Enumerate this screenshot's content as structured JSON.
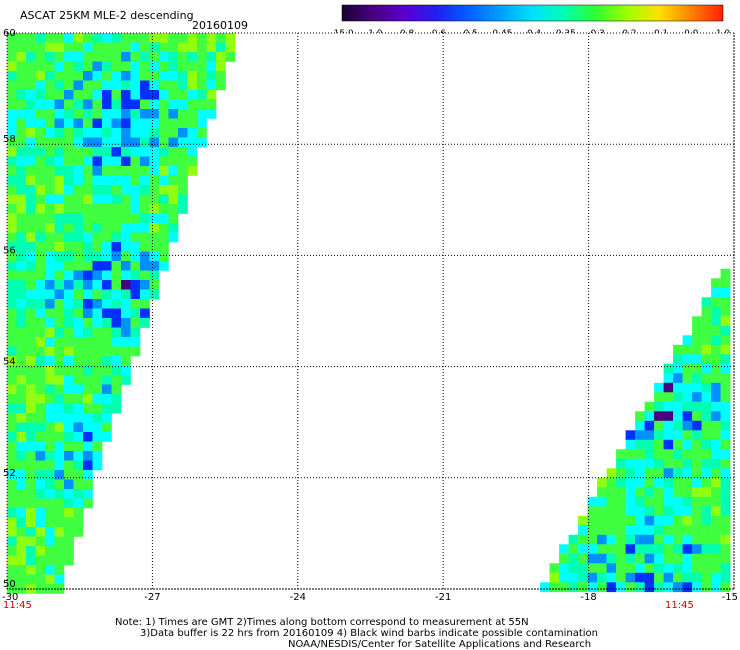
{
  "header": {
    "title": "ASCAT 25KM MLE-2 descending",
    "date": "20160109"
  },
  "colorbar": {
    "labels": [
      "-15.0",
      "-1.0",
      "-0.8",
      "-0.6",
      "-0.5",
      "-0.45",
      "-0.4",
      "-0.35",
      "-0.3",
      "-0.2",
      "-0.1",
      "0.0",
      "1.0"
    ],
    "colors": [
      "#1a0030",
      "#4b0082",
      "#5a00d0",
      "#2020f0",
      "#0060ff",
      "#00a0ff",
      "#00e0ff",
      "#00ffb0",
      "#30ff30",
      "#a0ff00",
      "#ffe000",
      "#ff8000",
      "#ff2000"
    ]
  },
  "chart_data": {
    "type": "heatmap",
    "title": "ASCAT 25KM MLE-2 descending",
    "xlabel": "",
    "ylabel": "",
    "xlim": [
      -30,
      -15
    ],
    "ylim": [
      50,
      60
    ],
    "xticks": [
      "-30",
      "-27",
      "-24",
      "-21",
      "-18",
      "-15"
    ],
    "yticks": [
      "60",
      "58",
      "56",
      "54",
      "52",
      "50"
    ],
    "x_values": [
      -30,
      -27,
      -24,
      -21,
      -18,
      -15
    ],
    "y_values": [
      60,
      58,
      56,
      54,
      52,
      50
    ],
    "grid": true,
    "colorscale_min": -15.0,
    "colorscale_max": 1.0,
    "swaths": [
      {
        "name": "",
        "time_label": "11:45",
        "dominant_range": "-0.45 to -0.3",
        "corners": [
          [
            -30,
            60
          ],
          [
            -25.2,
            60
          ],
          [
            -28.9,
            50
          ],
          [
            -30,
            50
          ]
        ]
      },
      {
        "name": "",
        "time_label": "11:45",
        "dominant_range": "-0.4 to -0.2",
        "corners": [
          [
            -15,
            56.1
          ],
          [
            -15,
            50
          ],
          [
            -19.0,
            50
          ]
        ]
      }
    ]
  },
  "footer": {
    "time_left": "11:45",
    "time_right": "11:45",
    "note1": "Note: 1) Times are GMT 2)Times along bottom correspond to measurement at 55N",
    "note2": "3)Data buffer is 22 hrs from 20160109 4) Black wind barbs indicate possible contamination",
    "note3": "NOAA/NESDIS/Center for Satellite Applications and Research"
  },
  "colors": {
    "grid": "#000000",
    "time_label": "#cc0000",
    "wind_dominant": "#40ff40",
    "wind_secondary": "#00ffff",
    "wind_low": "#0030ff",
    "wind_extreme": "#4b0082"
  }
}
